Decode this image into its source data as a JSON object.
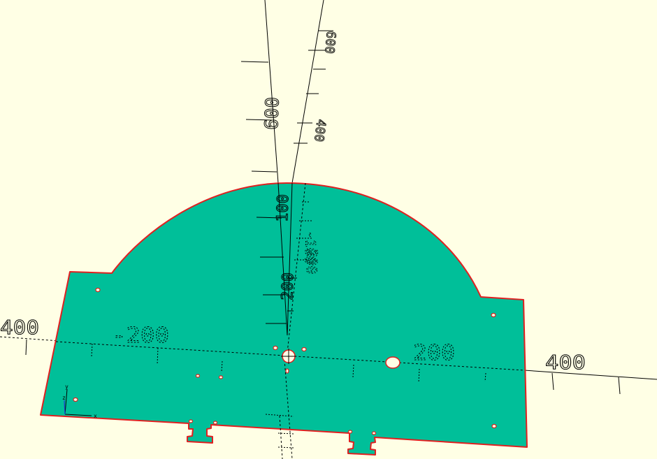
{
  "viewport": {
    "background_color": "#ffffe5",
    "part_fill_color": "#00bf99",
    "part_outline_color": "#e02020"
  },
  "axis_labels": {
    "x_negative_far": "400",
    "x_negative_near": "-200",
    "x_positive_near": "200",
    "x_positive_far": "400",
    "y_positive_far": "600",
    "y_positive_mid": "400",
    "z_positive_far": "600",
    "z_positive_near": "100",
    "z_positive_low": "-100",
    "z_lower_1": "200",
    "z_lower_2": "200"
  },
  "gizmo": {
    "x_label": "x",
    "y_label": "y",
    "z_label": "z"
  }
}
